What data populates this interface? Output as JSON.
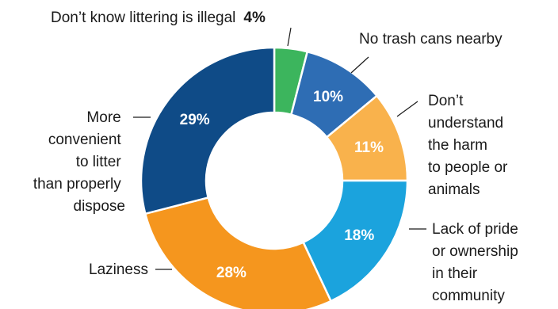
{
  "chart_data": {
    "type": "pie",
    "donut": true,
    "title": "",
    "series": [
      {
        "name": "",
        "values": [
          {
            "label": "Don’t know littering is illegal",
            "value": 4,
            "display": "4%",
            "color": "#3cb55d"
          },
          {
            "label": "No trash cans nearby",
            "value": 10,
            "display": "10%",
            "color": "#2e6db4"
          },
          {
            "label": "Don’t understand the harm to people or animals",
            "value": 11,
            "display": "11%",
            "color": "#f9b24c"
          },
          {
            "label": "Lack of pride or ownership in their community",
            "value": 18,
            "display": "18%",
            "color": "#1ba3dd"
          },
          {
            "label": "Laziness",
            "value": 28,
            "display": "28%",
            "color": "#f5961e"
          },
          {
            "label": "More convenient to litter than properly dispose",
            "value": 29,
            "display": "29%",
            "color": "#0f4b87"
          }
        ]
      }
    ]
  },
  "labels": {
    "illegal": [
      "Don’t know littering is illegal"
    ],
    "trash": [
      "No trash cans nearby"
    ],
    "harm": [
      "Don’t",
      "understand",
      "the harm",
      "to people or",
      "animals"
    ],
    "pride": [
      "Lack of pride",
      "or ownership",
      "in their",
      "community"
    ],
    "laziness": [
      "Laziness"
    ],
    "convenient": [
      "More",
      "convenient",
      "to litter",
      "than properly",
      "dispose"
    ]
  }
}
